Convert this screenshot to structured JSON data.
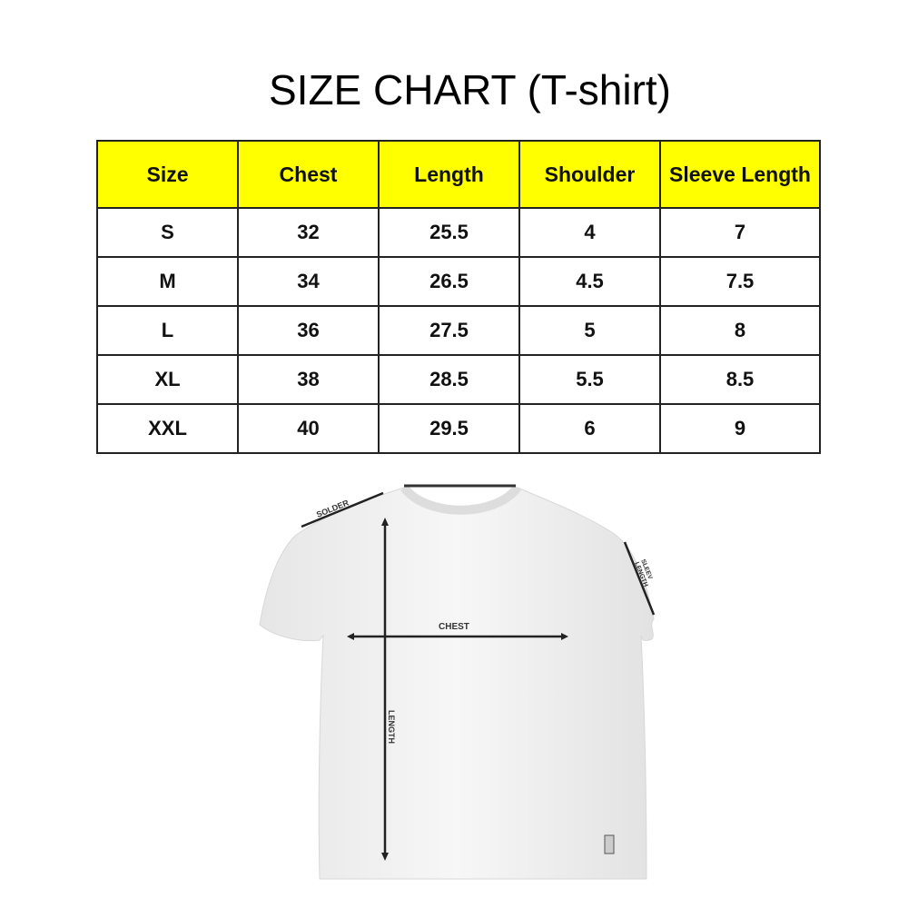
{
  "title": "SIZE CHART (T-shirt)",
  "table": {
    "headers": [
      "Size",
      "Chest",
      "Length",
      "Shoulder",
      "Sleeve Length"
    ],
    "rows": [
      [
        "S",
        "32",
        "25.5",
        "4",
        "7"
      ],
      [
        "M",
        "34",
        "26.5",
        "4.5",
        "7.5"
      ],
      [
        "L",
        "36",
        "27.5",
        "5",
        "8"
      ],
      [
        "XL",
        "38",
        "28.5",
        "5.5",
        "8.5"
      ],
      [
        "XXL",
        "40",
        "29.5",
        "6",
        "9"
      ]
    ],
    "header_color": "#ffff00"
  },
  "diagram": {
    "labels": {
      "shoulder": "SOLDER",
      "sleeve_1": "SLEEV",
      "sleeve_2": "LENGTH",
      "chest": "CHEST",
      "length": "LENGTH"
    }
  }
}
